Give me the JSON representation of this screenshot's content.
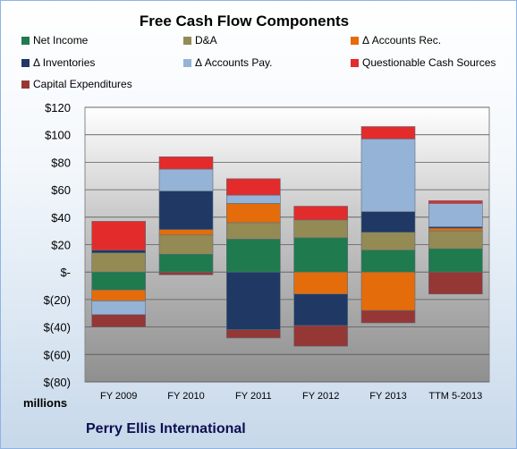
{
  "chart_data": {
    "type": "bar",
    "stacked": true,
    "title": "Free Cash Flow Components",
    "units_label": "millions",
    "company": "Perry Ellis International",
    "categories": [
      "FY 2009",
      "FY 2010",
      "FY 2011",
      "FY 2012",
      "FY 2013",
      "TTM 5-2013"
    ],
    "y_ticks": [
      "$120",
      "$100",
      "$80",
      "$60",
      "$40",
      "$20",
      "$-",
      "$(20)",
      "$(40)",
      "$(60)",
      "$(80)"
    ],
    "ylim": [
      -80,
      120
    ],
    "grid": true,
    "legend_position": "top",
    "series": [
      {
        "name": "Net Income",
        "color": "#1f7a4d",
        "values": [
          -13,
          13,
          24,
          25,
          16,
          17
        ]
      },
      {
        "name": "D&A",
        "color": "#948a54",
        "values": [
          14,
          14,
          12,
          13,
          13,
          13
        ]
      },
      {
        "name": "Δ Accounts Rec.",
        "color": "#e46c0a",
        "values": [
          -8,
          4,
          14,
          -16,
          -28,
          2
        ]
      },
      {
        "name": "Δ Inventories",
        "color": "#1f3864",
        "values": [
          2,
          28,
          -42,
          -23,
          15,
          1
        ]
      },
      {
        "name": "Δ Accounts Pay.",
        "color": "#95b3d7",
        "values": [
          -10,
          16,
          6,
          0,
          53,
          17
        ]
      },
      {
        "name": "Questionable Cash Sources",
        "color": "#e32b2b",
        "values": [
          21,
          9,
          12,
          10,
          9,
          2
        ]
      },
      {
        "name": "Capital Expenditures",
        "color": "#953735",
        "values": [
          -9,
          -2,
          -6,
          -15,
          -9,
          -16
        ]
      }
    ]
  }
}
